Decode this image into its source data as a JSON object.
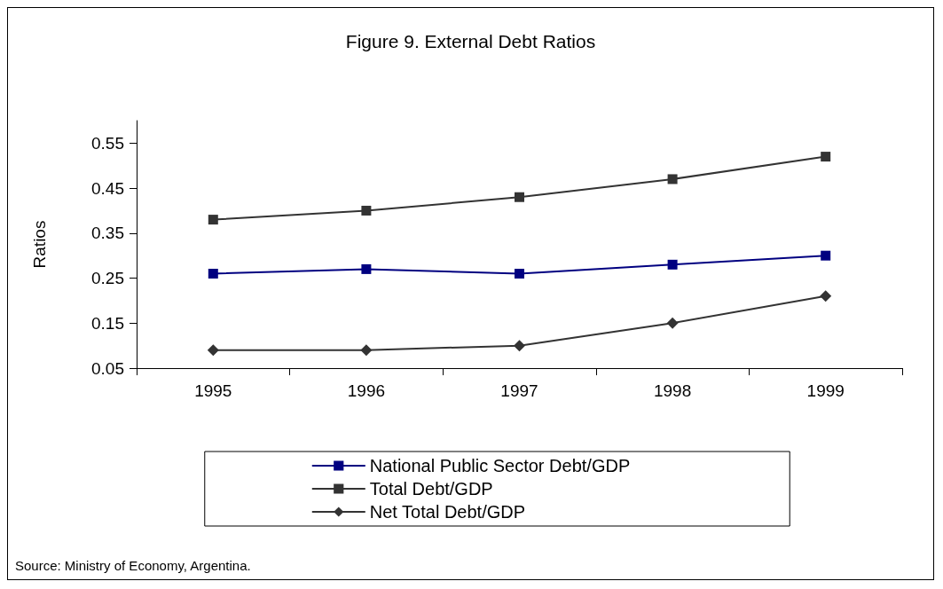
{
  "chart_data": {
    "type": "line",
    "title": "Figure 9. External Debt Ratios",
    "ylabel": "Ratios",
    "categories": [
      "1995",
      "1996",
      "1997",
      "1998",
      "1999"
    ],
    "series": [
      {
        "name": "National Public Sector Debt/GDP",
        "color": "#000080",
        "marker": "square",
        "values": [
          0.26,
          0.27,
          0.26,
          0.28,
          0.3
        ]
      },
      {
        "name": "Total Debt/GDP",
        "color": "#333333",
        "marker": "square",
        "values": [
          0.38,
          0.4,
          0.43,
          0.47,
          0.52
        ]
      },
      {
        "name": "Net Total Debt/GDP",
        "color": "#333333",
        "marker": "diamond",
        "values": [
          0.09,
          0.09,
          0.1,
          0.15,
          0.21
        ]
      }
    ],
    "ylim": [
      0.05,
      0.6
    ],
    "yticks": [
      0.05,
      0.15,
      0.25,
      0.35,
      0.45,
      0.55
    ],
    "grid": false,
    "legend": "bottom",
    "line_style": "solid",
    "annotations": [
      "Source: Ministry of Economy, Argentina."
    ]
  }
}
